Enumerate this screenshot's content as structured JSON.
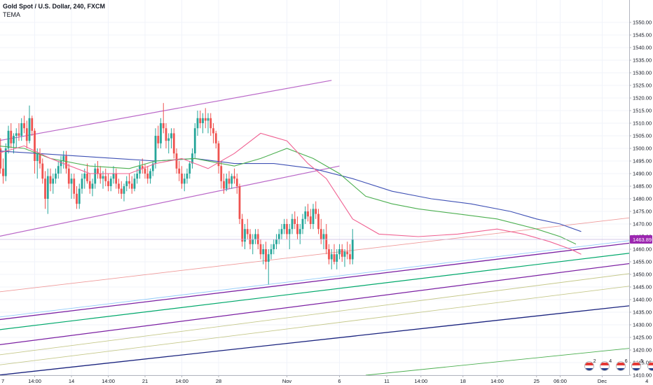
{
  "header": {
    "title": "Gold Spot / U.S. Dollar, 240, FXCM",
    "indicator": "TEMA"
  },
  "theme": {
    "bull_color": "#26a69a",
    "bear_color": "#ef5350",
    "price_tag_color": "#9c27b0",
    "grid_color": "#f0f3fa"
  },
  "chart_data": {
    "type": "candlestick",
    "title": "Gold Spot / U.S. Dollar, 240, FXCM",
    "indicator": "TEMA",
    "timeframe": "240",
    "ylim": [
      1410,
      1552
    ],
    "y_ticks": [
      1410,
      1415,
      1420,
      1425,
      1430,
      1435,
      1440,
      1445,
      1450,
      1455,
      1460,
      1465,
      1470,
      1475,
      1480,
      1485,
      1490,
      1495,
      1500,
      1505,
      1510,
      1515,
      1520,
      1525,
      1530,
      1535,
      1540,
      1545,
      1550
    ],
    "x_ticks": [
      {
        "label": "7",
        "bar": 0
      },
      {
        "label": "14:00",
        "bar": 14
      },
      {
        "label": "14",
        "bar": 28
      },
      {
        "label": "14:00",
        "bar": 42
      },
      {
        "label": "21",
        "bar": 56
      },
      {
        "label": "14:00",
        "bar": 70
      },
      {
        "label": "28",
        "bar": 84
      },
      {
        "label": "Nov",
        "bar": 110
      },
      {
        "label": "6",
        "bar": 130
      },
      {
        "label": "11",
        "bar": 148
      },
      {
        "label": "14:00",
        "bar": 161
      },
      {
        "label": "18",
        "bar": 177
      },
      {
        "label": "14:00",
        "bar": 190
      },
      {
        "label": "25",
        "bar": 205
      },
      {
        "label": "06:00",
        "bar": 214
      },
      {
        "label": "Dec",
        "bar": 230
      },
      {
        "label": "4",
        "bar": 247
      }
    ],
    "n_bars_axis": 253,
    "candles": [
      [
        1498,
        1503,
        1494,
        1500
      ],
      [
        1500,
        1504,
        1490,
        1492
      ],
      [
        1492,
        1496,
        1486,
        1489
      ],
      [
        1489,
        1502,
        1487,
        1500
      ],
      [
        1500,
        1509,
        1498,
        1507
      ],
      [
        1507,
        1510,
        1500,
        1502
      ],
      [
        1502,
        1506,
        1498,
        1505
      ],
      [
        1505,
        1508,
        1500,
        1506
      ],
      [
        1506,
        1510,
        1503,
        1505
      ],
      [
        1505,
        1512,
        1503,
        1510
      ],
      [
        1510,
        1513,
        1506,
        1508
      ],
      [
        1508,
        1511,
        1500,
        1503
      ],
      [
        1503,
        1517,
        1502,
        1512
      ],
      [
        1512,
        1513,
        1505,
        1507
      ],
      [
        1507,
        1508,
        1490,
        1495
      ],
      [
        1495,
        1500,
        1488,
        1498
      ],
      [
        1498,
        1500,
        1492,
        1494
      ],
      [
        1494,
        1496,
        1486,
        1488
      ],
      [
        1488,
        1491,
        1476,
        1480
      ],
      [
        1480,
        1492,
        1474,
        1489
      ],
      [
        1489,
        1492,
        1483,
        1486
      ],
      [
        1486,
        1490,
        1482,
        1488
      ],
      [
        1488,
        1492,
        1486,
        1490
      ],
      [
        1490,
        1495,
        1488,
        1493
      ],
      [
        1493,
        1497,
        1490,
        1495
      ],
      [
        1495,
        1499,
        1492,
        1497
      ],
      [
        1497,
        1499,
        1490,
        1492
      ],
      [
        1492,
        1494,
        1484,
        1486
      ],
      [
        1486,
        1490,
        1480,
        1488
      ],
      [
        1488,
        1490,
        1480,
        1482
      ],
      [
        1482,
        1485,
        1476,
        1478
      ],
      [
        1478,
        1486,
        1476,
        1484
      ],
      [
        1484,
        1490,
        1482,
        1488
      ],
      [
        1488,
        1492,
        1484,
        1490
      ],
      [
        1490,
        1494,
        1486,
        1487
      ],
      [
        1487,
        1490,
        1482,
        1484
      ],
      [
        1484,
        1488,
        1481,
        1486
      ],
      [
        1486,
        1494,
        1484,
        1492
      ],
      [
        1492,
        1495,
        1488,
        1490
      ],
      [
        1490,
        1493,
        1486,
        1488
      ],
      [
        1488,
        1491,
        1484,
        1489
      ],
      [
        1489,
        1492,
        1485,
        1487
      ],
      [
        1487,
        1490,
        1483,
        1485
      ],
      [
        1485,
        1489,
        1483,
        1488
      ],
      [
        1488,
        1493,
        1486,
        1490
      ],
      [
        1490,
        1492,
        1484,
        1486
      ],
      [
        1486,
        1488,
        1482,
        1484
      ],
      [
        1484,
        1487,
        1480,
        1482
      ],
      [
        1482,
        1486,
        1479,
        1485
      ],
      [
        1485,
        1489,
        1483,
        1487
      ],
      [
        1487,
        1490,
        1484,
        1486
      ],
      [
        1486,
        1489,
        1482,
        1484
      ],
      [
        1484,
        1490,
        1483,
        1488
      ],
      [
        1488,
        1492,
        1486,
        1490
      ],
      [
        1490,
        1495,
        1488,
        1493
      ],
      [
        1493,
        1496,
        1490,
        1492
      ],
      [
        1492,
        1494,
        1488,
        1490
      ],
      [
        1490,
        1493,
        1486,
        1488
      ],
      [
        1488,
        1492,
        1486,
        1491
      ],
      [
        1491,
        1495,
        1489,
        1494
      ],
      [
        1494,
        1508,
        1492,
        1505
      ],
      [
        1505,
        1509,
        1500,
        1502
      ],
      [
        1502,
        1512,
        1500,
        1510
      ],
      [
        1510,
        1518,
        1506,
        1508
      ],
      [
        1508,
        1510,
        1500,
        1503
      ],
      [
        1503,
        1506,
        1498,
        1504
      ],
      [
        1504,
        1508,
        1500,
        1506
      ],
      [
        1506,
        1508,
        1496,
        1498
      ],
      [
        1498,
        1500,
        1490,
        1492
      ],
      [
        1492,
        1495,
        1487,
        1490
      ],
      [
        1490,
        1493,
        1484,
        1486
      ],
      [
        1486,
        1490,
        1483,
        1488
      ],
      [
        1488,
        1492,
        1486,
        1490
      ],
      [
        1490,
        1495,
        1488,
        1494
      ],
      [
        1494,
        1500,
        1492,
        1498
      ],
      [
        1498,
        1510,
        1496,
        1508
      ],
      [
        1508,
        1515,
        1505,
        1512
      ],
      [
        1512,
        1515,
        1508,
        1510
      ],
      [
        1510,
        1514,
        1506,
        1512
      ],
      [
        1512,
        1516,
        1508,
        1511
      ],
      [
        1511,
        1514,
        1506,
        1512
      ],
      [
        1512,
        1514,
        1505,
        1508
      ],
      [
        1508,
        1510,
        1502,
        1506
      ],
      [
        1506,
        1507,
        1500,
        1502
      ],
      [
        1502,
        1503,
        1490,
        1493
      ],
      [
        1493,
        1495,
        1484,
        1487
      ],
      [
        1487,
        1490,
        1482,
        1484
      ],
      [
        1484,
        1490,
        1483,
        1488
      ],
      [
        1488,
        1491,
        1484,
        1486
      ],
      [
        1486,
        1490,
        1484,
        1489
      ],
      [
        1489,
        1492,
        1486,
        1488
      ],
      [
        1488,
        1490,
        1482,
        1485
      ],
      [
        1485,
        1486,
        1470,
        1472
      ],
      [
        1472,
        1474,
        1461,
        1463
      ],
      [
        1463,
        1470,
        1460,
        1468
      ],
      [
        1468,
        1472,
        1464,
        1466
      ],
      [
        1466,
        1468,
        1460,
        1462
      ],
      [
        1462,
        1466,
        1458,
        1464
      ],
      [
        1464,
        1468,
        1462,
        1466
      ],
      [
        1466,
        1468,
        1460,
        1462
      ],
      [
        1462,
        1464,
        1456,
        1458
      ],
      [
        1458,
        1462,
        1454,
        1460
      ],
      [
        1460,
        1463,
        1452,
        1455
      ],
      [
        1455,
        1460,
        1446,
        1458
      ],
      [
        1458,
        1462,
        1456,
        1460
      ],
      [
        1460,
        1464,
        1458,
        1462
      ],
      [
        1462,
        1466,
        1460,
        1464
      ],
      [
        1464,
        1468,
        1462,
        1466
      ],
      [
        1466,
        1470,
        1464,
        1468
      ],
      [
        1468,
        1472,
        1466,
        1470
      ],
      [
        1470,
        1472,
        1464,
        1466
      ],
      [
        1466,
        1470,
        1460,
        1468
      ],
      [
        1468,
        1474,
        1466,
        1472
      ],
      [
        1472,
        1475,
        1468,
        1470
      ],
      [
        1470,
        1473,
        1464,
        1466
      ],
      [
        1466,
        1470,
        1462,
        1468
      ],
      [
        1468,
        1474,
        1466,
        1472
      ],
      [
        1472,
        1477,
        1470,
        1475
      ],
      [
        1475,
        1478,
        1471,
        1473
      ],
      [
        1473,
        1476,
        1468,
        1470
      ],
      [
        1470,
        1478,
        1468,
        1476
      ],
      [
        1476,
        1479,
        1472,
        1474
      ],
      [
        1474,
        1476,
        1466,
        1468
      ],
      [
        1468,
        1472,
        1462,
        1464
      ],
      [
        1464,
        1468,
        1460,
        1466
      ],
      [
        1466,
        1470,
        1458,
        1460
      ],
      [
        1460,
        1462,
        1454,
        1456
      ],
      [
        1456,
        1460,
        1452,
        1458
      ],
      [
        1458,
        1462,
        1454,
        1455
      ],
      [
        1455,
        1460,
        1452,
        1458
      ],
      [
        1458,
        1462,
        1456,
        1460
      ],
      [
        1460,
        1462,
        1455,
        1457
      ],
      [
        1457,
        1460,
        1453,
        1459
      ],
      [
        1459,
        1463,
        1456,
        1458
      ],
      [
        1458,
        1462,
        1454,
        1456
      ],
      [
        1456,
        1468,
        1454,
        1464
      ]
    ],
    "tema_lines": [
      {
        "name": "",
        "color": "#3f51b5",
        "points": [
          [
            0,
            1499
          ],
          [
            15,
            1498
          ],
          [
            30,
            1497
          ],
          [
            45,
            1496
          ],
          [
            60,
            1495
          ],
          [
            75,
            1496
          ],
          [
            90,
            1494
          ],
          [
            105,
            1494
          ],
          [
            120,
            1492
          ],
          [
            135,
            1488
          ],
          [
            150,
            1483
          ],
          [
            165,
            1480
          ],
          [
            180,
            1478
          ],
          [
            195,
            1475
          ],
          [
            205,
            1472
          ],
          [
            214,
            1470
          ],
          [
            222,
            1467
          ]
        ]
      },
      {
        "name": "",
        "color": "#4caf50",
        "points": [
          [
            0,
            1501
          ],
          [
            10,
            1500
          ],
          [
            20,
            1496
          ],
          [
            35,
            1493
          ],
          [
            50,
            1492
          ],
          [
            60,
            1495
          ],
          [
            75,
            1496
          ],
          [
            90,
            1493
          ],
          [
            100,
            1496
          ],
          [
            110,
            1500
          ],
          [
            120,
            1496
          ],
          [
            130,
            1490
          ],
          [
            140,
            1481
          ],
          [
            150,
            1478
          ],
          [
            160,
            1476
          ],
          [
            175,
            1474
          ],
          [
            190,
            1472
          ],
          [
            205,
            1468
          ],
          [
            214,
            1465
          ],
          [
            220,
            1462
          ]
        ]
      },
      {
        "name": "",
        "color": "#f06292",
        "points": [
          [
            0,
            1498
          ],
          [
            10,
            1501
          ],
          [
            20,
            1496
          ],
          [
            35,
            1490
          ],
          [
            50,
            1490
          ],
          [
            60,
            1494
          ],
          [
            70,
            1496
          ],
          [
            80,
            1492
          ],
          [
            90,
            1498
          ],
          [
            100,
            1506
          ],
          [
            110,
            1503
          ],
          [
            118,
            1494
          ],
          [
            125,
            1488
          ],
          [
            135,
            1472
          ],
          [
            145,
            1466
          ],
          [
            160,
            1465
          ],
          [
            175,
            1466
          ],
          [
            190,
            1468
          ],
          [
            200,
            1466
          ],
          [
            210,
            1463
          ],
          [
            218,
            1460
          ],
          [
            222,
            1458
          ]
        ]
      }
    ],
    "trend_lines": [
      {
        "color": "#ba68c8",
        "width": 1.2,
        "from": [
          0,
          1503
        ],
        "to": [
          127,
          1527
        ]
      },
      {
        "color": "#ba68c8",
        "width": 1.2,
        "from": [
          0,
          1465
        ],
        "to": [
          130,
          1493
        ]
      },
      {
        "color": "#ef9a9a",
        "width": 0.9,
        "from": [
          0,
          1443
        ],
        "to": [
          253,
          1474
        ]
      },
      {
        "color": "#90caf9",
        "width": 0.9,
        "from": [
          0,
          1433
        ],
        "to": [
          253,
          1465
        ]
      },
      {
        "color": "#7b1fa2",
        "width": 1.3,
        "from": [
          0,
          1432
        ],
        "to": [
          253,
          1464
        ]
      },
      {
        "color": "#00a86b",
        "width": 1.2,
        "from": [
          0,
          1428
        ],
        "to": [
          253,
          1460
        ]
      },
      {
        "color": "#7b1fa2",
        "width": 1.2,
        "from": [
          0,
          1422
        ],
        "to": [
          253,
          1456
        ]
      },
      {
        "color": "#c5c88a",
        "width": 0.9,
        "from": [
          0,
          1418
        ],
        "to": [
          253,
          1452
        ]
      },
      {
        "color": "#c5c88a",
        "width": 0.9,
        "from": [
          0,
          1414
        ],
        "to": [
          253,
          1447
        ]
      },
      {
        "color": "#1a237e",
        "width": 1.3,
        "from": [
          0,
          1410
        ],
        "to": [
          253,
          1439
        ]
      },
      {
        "color": "#4caf50",
        "width": 0.9,
        "from": [
          140,
          1410
        ],
        "to": [
          253,
          1422
        ]
      }
    ],
    "current_price": {
      "value": 1463.89,
      "label": "1463.89"
    },
    "crosshair_price": 1463.89,
    "events": [
      {
        "count": "2",
        "bar": 225
      },
      {
        "count": "4",
        "bar": 231
      },
      {
        "count": "6",
        "bar": 237
      },
      {
        "count": "5",
        "bar": 243
      },
      {
        "count": "6",
        "bar": 249
      }
    ],
    "grid": true,
    "legend": "none"
  }
}
